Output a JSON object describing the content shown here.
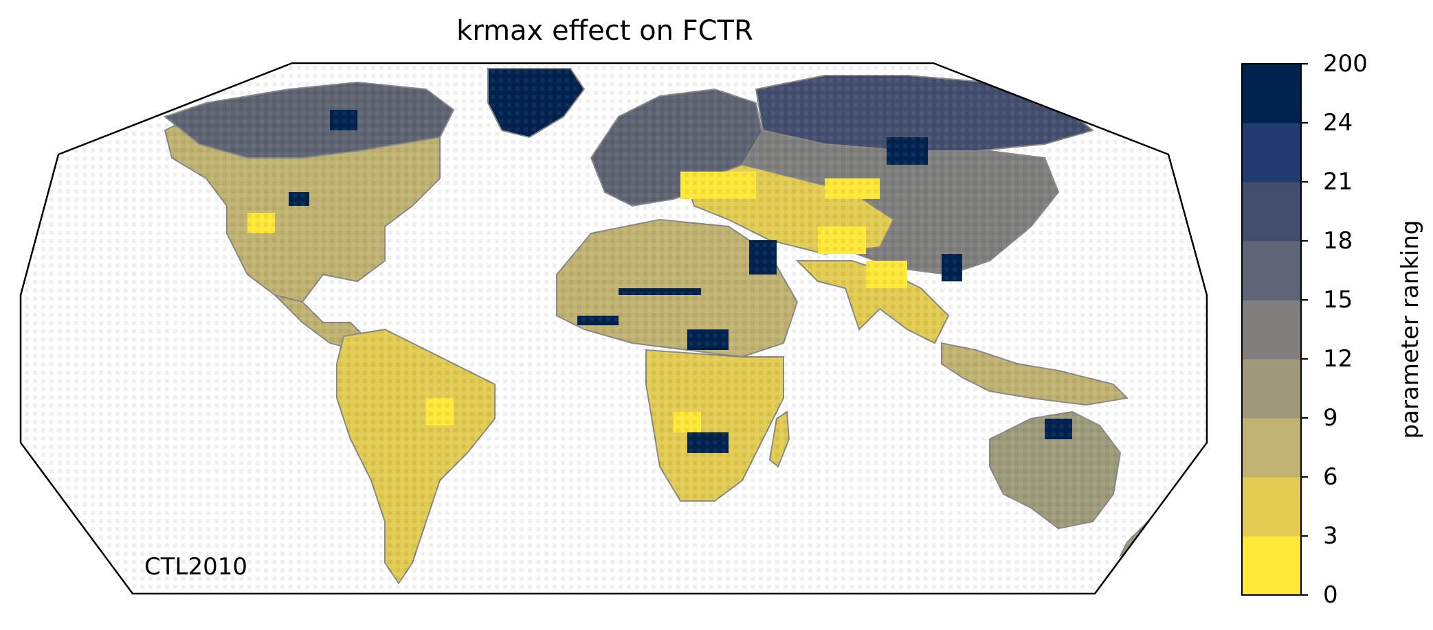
{
  "title": "krmax effect on FCTR",
  "map_tag": "CTL2010",
  "colorbar": {
    "label": "parameter ranking",
    "ticks": [
      "0",
      "3",
      "6",
      "9",
      "12",
      "15",
      "18",
      "21",
      "24",
      "200"
    ],
    "colors": [
      "#ffe838",
      "#e2cc52",
      "#c0b270",
      "#9e9a7a",
      "#807f7d",
      "#5f6474",
      "#434e6e",
      "#213b71",
      "#00224e"
    ]
  },
  "region_colors": {
    "north_america": "#c0b270",
    "canada": "#5f6474",
    "greenland": "#00224e",
    "south_america": "#e2cc52",
    "africa_north": "#c0b270",
    "africa_south": "#e2cc52",
    "europe": "#5f6474",
    "asia_north": "#807f7d",
    "asia_central": "#e2cc52",
    "asia_south": "#e2cc52",
    "siberia": "#434e6e",
    "australia": "#9e9a7a",
    "indonesia": "#c0b270",
    "dark_patch": "#00224e",
    "bright_patch": "#ffe838",
    "coastline": "#888888"
  }
}
